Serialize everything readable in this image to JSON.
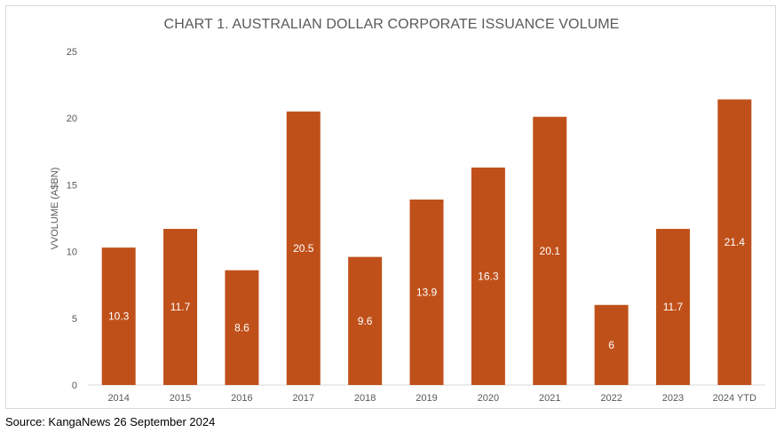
{
  "chart_data": {
    "type": "bar",
    "title": "CHART 1. AUSTRALIAN DOLLAR CORPORATE ISSUANCE VOLUME",
    "xlabel": "",
    "ylabel": "VVOLUME (A$BN)",
    "ylim": [
      0,
      25
    ],
    "yticks": [
      0,
      5,
      10,
      15,
      20,
      25
    ],
    "grid": false,
    "legend": "none",
    "bar_color": "#c0501a",
    "categories": [
      "2014",
      "2015",
      "2016",
      "2017",
      "2018",
      "2019",
      "2020",
      "2021",
      "2022",
      "2023",
      "2024 YTD"
    ],
    "values": [
      10.3,
      11.7,
      8.6,
      20.5,
      9.6,
      13.9,
      16.3,
      20.1,
      6,
      11.7,
      21.4
    ],
    "data_labels": [
      "10.3",
      "11.7",
      "8.6",
      "20.5",
      "9.6",
      "13.9",
      "16.3",
      "20.1",
      "6",
      "11.7",
      "21.4"
    ]
  },
  "source": "Source: KangaNews 26 September 2024"
}
